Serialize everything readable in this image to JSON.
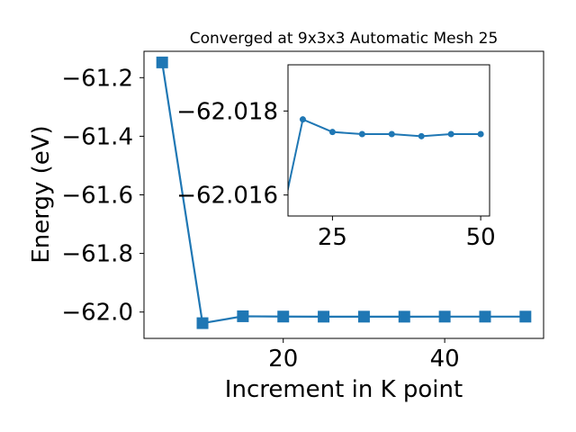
{
  "chart_data": [
    {
      "type": "line",
      "title": "Converged at 9x3x3 Automatic Mesh 25",
      "xlabel": "Increment in K point",
      "ylabel": "Energy (eV)",
      "xlim": [
        2.75,
        52.25
      ],
      "ylim": [
        -62.09,
        -61.11
      ],
      "xticks": [
        20,
        40
      ],
      "yticks": [
        -62.0,
        -61.8,
        -61.6,
        -61.4,
        -61.2
      ],
      "grid": false,
      "legend": "none",
      "marker": "square",
      "color": "#1f77b4",
      "series": [
        {
          "x": [
            5,
            10,
            15,
            20,
            25,
            30,
            35,
            40,
            45,
            50
          ],
          "y": [
            -61.148,
            -62.038,
            -62.0145,
            -62.0155,
            -62.0158,
            -62.0158,
            -62.0159,
            -62.0157,
            -62.0157,
            -62.0157
          ]
        }
      ]
    },
    {
      "type": "line",
      "title": "",
      "xlabel": "",
      "ylabel": "",
      "xlim": [
        17.5,
        51.5
      ],
      "ylim": [
        -62.0155,
        -62.0191
      ],
      "xticks": [
        25,
        50
      ],
      "yticks": [
        -62.018,
        -62.016
      ],
      "grid": false,
      "legend": "none",
      "marker": "circle",
      "color": "#1f77b4",
      "series": [
        {
          "x": [
            15,
            20,
            25,
            30,
            35,
            40,
            45,
            50
          ],
          "y": [
            -62.0145,
            -62.0178,
            -62.0175,
            -62.01745,
            -62.01745,
            -62.0174,
            -62.01745,
            -62.01745
          ]
        }
      ]
    }
  ]
}
